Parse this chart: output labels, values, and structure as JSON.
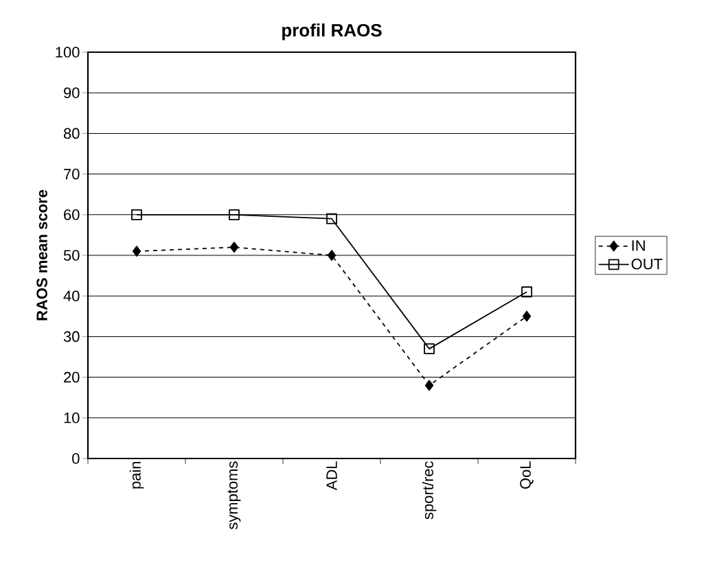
{
  "chart_data": {
    "type": "line",
    "title": "profil RAOS",
    "ylabel": "RAOS mean score",
    "categories": [
      "pain",
      "symptoms",
      "ADL",
      "sport/rec",
      "QoL"
    ],
    "series": [
      {
        "name": "IN",
        "color": "#000000",
        "values": [
          51,
          52,
          50,
          18,
          35
        ],
        "marker": "diamond",
        "line_style": "dashed"
      },
      {
        "name": "OUT",
        "color": "#000000",
        "values": [
          60,
          60,
          59,
          27,
          41
        ],
        "marker": "square",
        "line_style": "solid"
      }
    ],
    "ylim": [
      0,
      100
    ],
    "yticks": [
      0,
      10,
      20,
      30,
      40,
      50,
      60,
      70,
      80,
      90,
      100
    ],
    "grid": "y",
    "legend": "right"
  }
}
